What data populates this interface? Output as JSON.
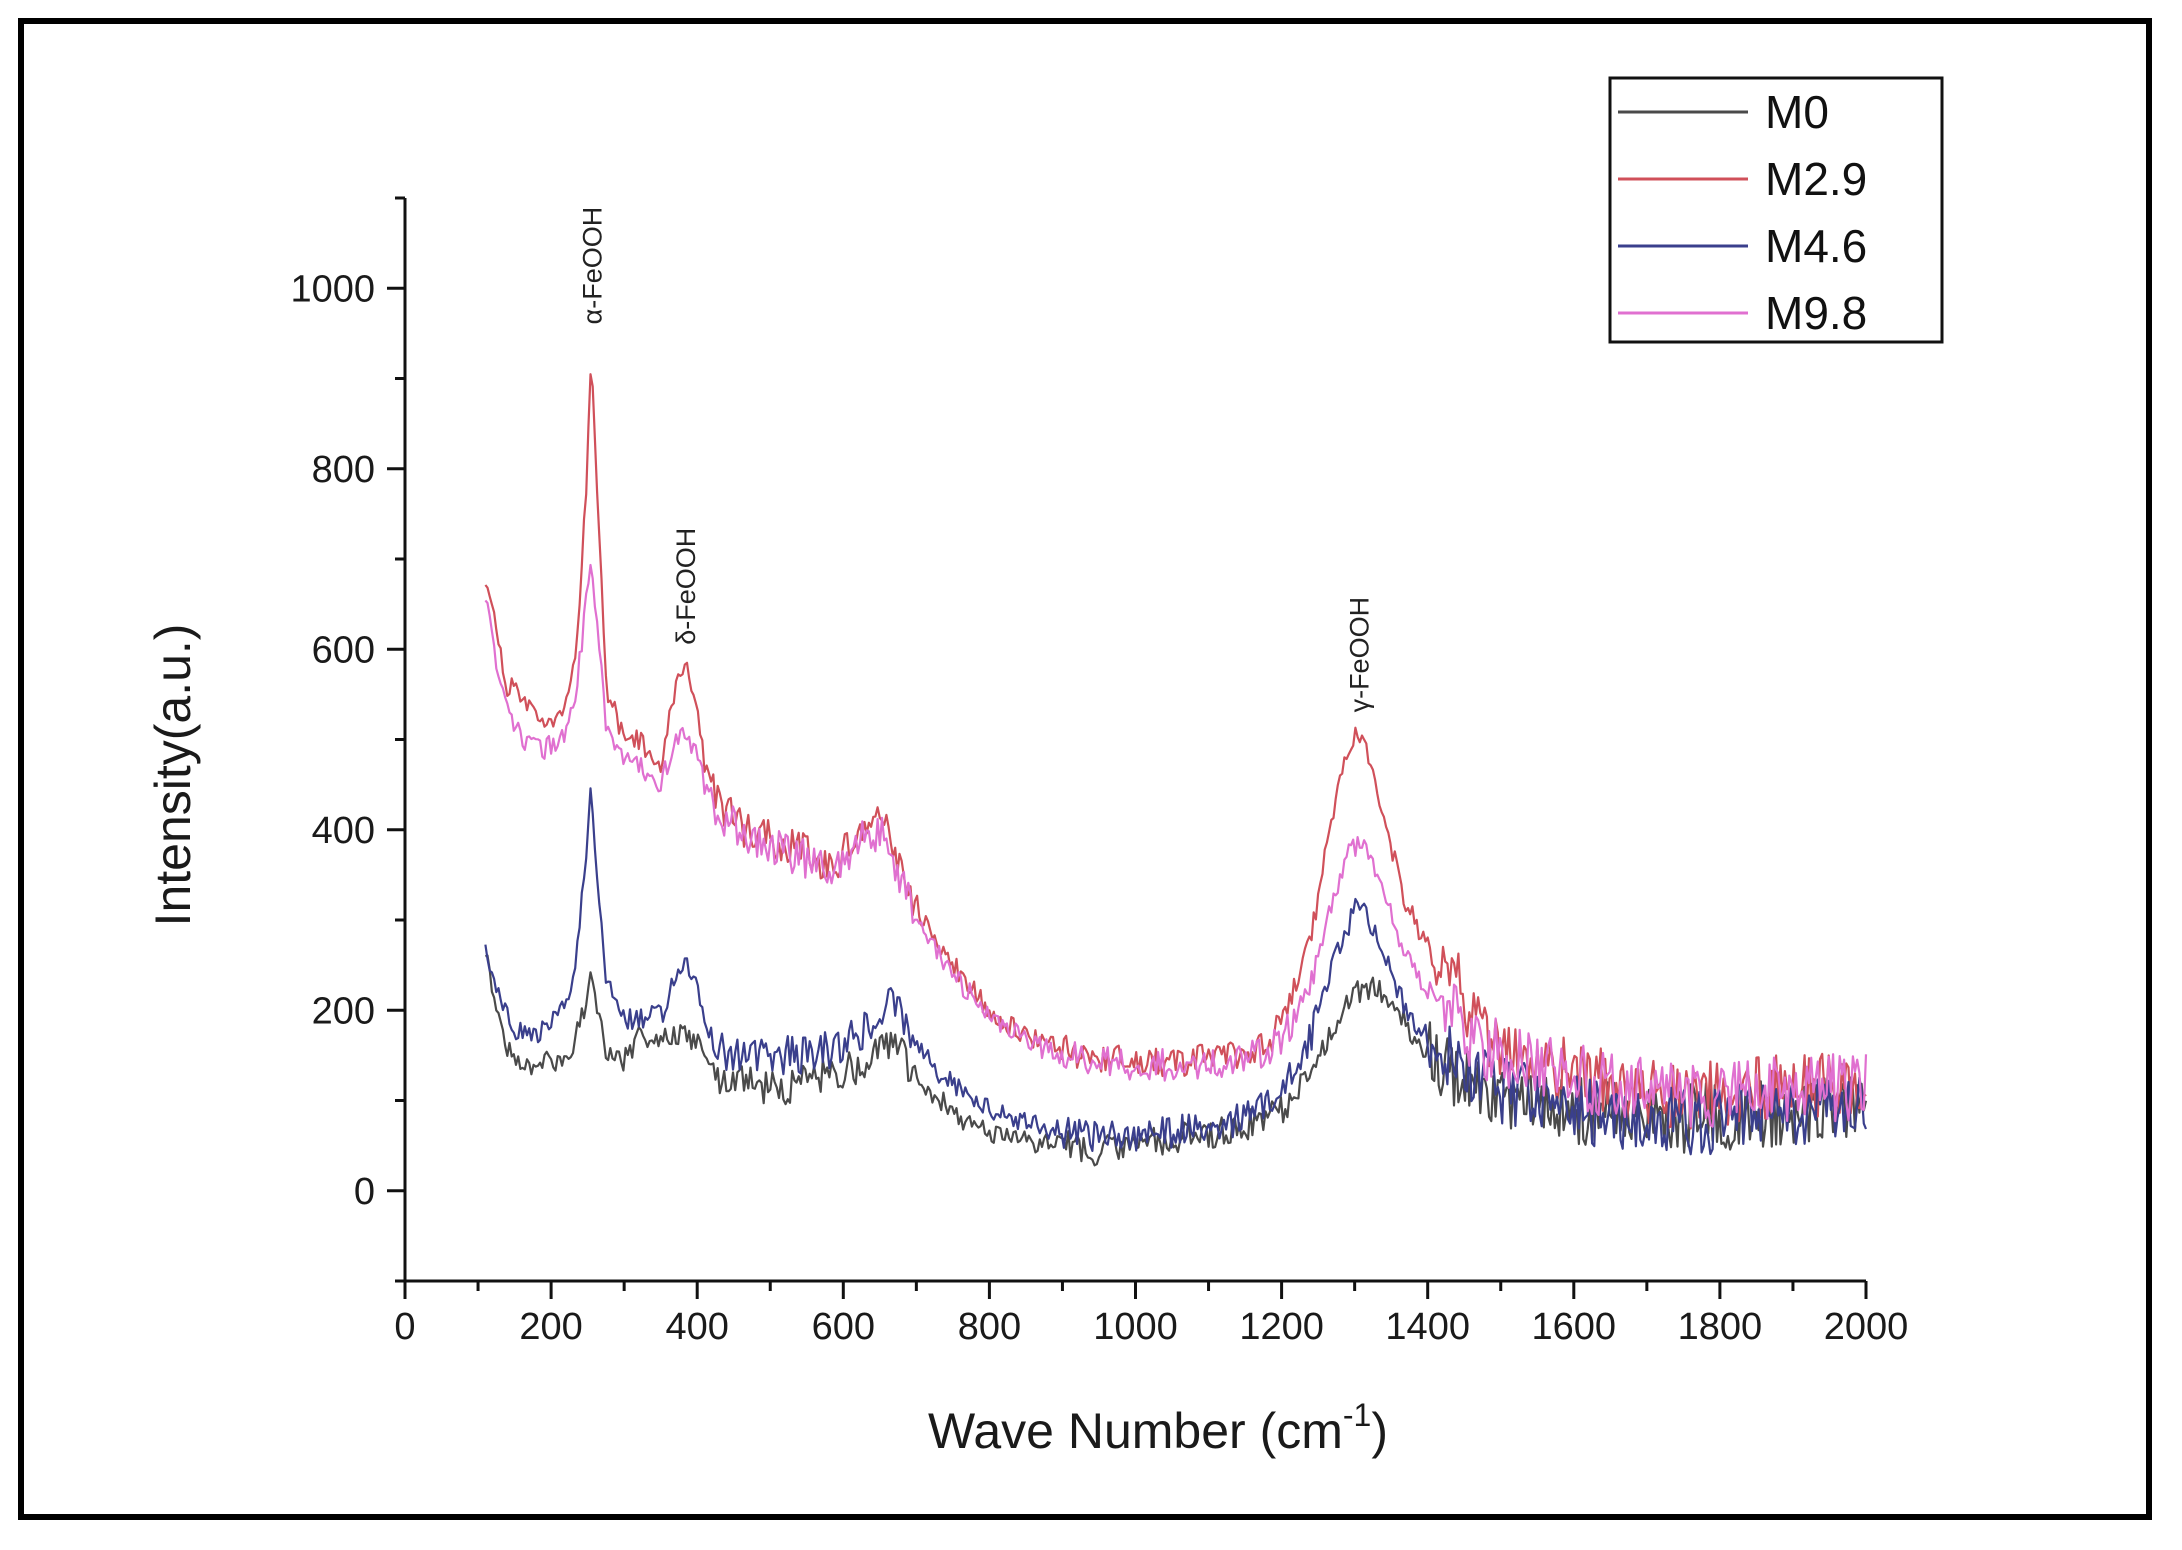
{
  "chart_data": {
    "type": "line",
    "xlabel_main": "Wave Number (cm",
    "xlabel_sup": "-1",
    "xlabel_end": ")",
    "ylabel": "Intensity(a.u.)",
    "xlim": [
      0,
      2000
    ],
    "ylim": [
      -100,
      1100
    ],
    "x_ticks": [
      0,
      200,
      400,
      600,
      800,
      1000,
      1200,
      1400,
      1600,
      1800,
      2000
    ],
    "y_ticks": [
      0,
      200,
      400,
      600,
      800,
      1000
    ],
    "annotations": [
      {
        "text": "α-FeOOH",
        "x": 255,
        "y": 960
      },
      {
        "text": "δ-FeOOH",
        "x": 383,
        "y": 605
      },
      {
        "text": "γ-FeOOH",
        "x": 1305,
        "y": 530
      }
    ],
    "legend_position": "top-right",
    "series": [
      {
        "name": "M0",
        "color": "#4a4a4a",
        "points": [
          [
            110,
            270
          ],
          [
            120,
            210
          ],
          [
            135,
            170
          ],
          [
            150,
            140
          ],
          [
            180,
            140
          ],
          [
            210,
            145
          ],
          [
            230,
            160
          ],
          [
            245,
            200
          ],
          [
            255,
            240
          ],
          [
            265,
            200
          ],
          [
            275,
            150
          ],
          [
            300,
            145
          ],
          [
            320,
            170
          ],
          [
            340,
            160
          ],
          [
            360,
            170
          ],
          [
            380,
            175
          ],
          [
            400,
            165
          ],
          [
            430,
            130
          ],
          [
            460,
            120
          ],
          [
            500,
            115
          ],
          [
            540,
            120
          ],
          [
            580,
            125
          ],
          [
            620,
            140
          ],
          [
            650,
            165
          ],
          [
            665,
            165
          ],
          [
            690,
            140
          ],
          [
            720,
            110
          ],
          [
            760,
            80
          ],
          [
            800,
            65
          ],
          [
            850,
            55
          ],
          [
            900,
            50
          ],
          [
            950,
            45
          ],
          [
            1000,
            50
          ],
          [
            1050,
            60
          ],
          [
            1100,
            65
          ],
          [
            1150,
            70
          ],
          [
            1200,
            90
          ],
          [
            1240,
            130
          ],
          [
            1270,
            180
          ],
          [
            1300,
            220
          ],
          [
            1330,
            225
          ],
          [
            1355,
            210
          ],
          [
            1380,
            170
          ],
          [
            1420,
            140
          ],
          [
            1460,
            110
          ],
          [
            1500,
            100
          ],
          [
            1550,
            95
          ],
          [
            1600,
            90
          ],
          [
            1650,
            85
          ],
          [
            1700,
            82
          ],
          [
            1750,
            80
          ],
          [
            1800,
            82
          ],
          [
            1850,
            85
          ],
          [
            1900,
            88
          ],
          [
            1950,
            92
          ],
          [
            2000,
            100
          ]
        ]
      },
      {
        "name": "M2.9",
        "color": "#d0505a",
        "points": [
          [
            110,
            680
          ],
          [
            125,
            620
          ],
          [
            140,
            560
          ],
          [
            160,
            550
          ],
          [
            190,
            520
          ],
          [
            215,
            530
          ],
          [
            235,
            600
          ],
          [
            248,
            780
          ],
          [
            255,
            930
          ],
          [
            262,
            800
          ],
          [
            275,
            560
          ],
          [
            295,
            510
          ],
          [
            320,
            500
          ],
          [
            350,
            470
          ],
          [
            370,
            560
          ],
          [
            383,
            580
          ],
          [
            395,
            560
          ],
          [
            410,
            470
          ],
          [
            430,
            430
          ],
          [
            460,
            400
          ],
          [
            500,
            390
          ],
          [
            540,
            380
          ],
          [
            580,
            360
          ],
          [
            610,
            380
          ],
          [
            635,
            420
          ],
          [
            660,
            410
          ],
          [
            680,
            350
          ],
          [
            710,
            300
          ],
          [
            750,
            250
          ],
          [
            800,
            200
          ],
          [
            850,
            170
          ],
          [
            900,
            155
          ],
          [
            950,
            150
          ],
          [
            1000,
            145
          ],
          [
            1050,
            145
          ],
          [
            1100,
            145
          ],
          [
            1150,
            150
          ],
          [
            1200,
            180
          ],
          [
            1240,
            280
          ],
          [
            1270,
            420
          ],
          [
            1290,
            490
          ],
          [
            1305,
            510
          ],
          [
            1320,
            480
          ],
          [
            1345,
            400
          ],
          [
            1370,
            320
          ],
          [
            1400,
            270
          ],
          [
            1430,
            250
          ],
          [
            1460,
            190
          ],
          [
            1500,
            160
          ],
          [
            1550,
            140
          ],
          [
            1600,
            130
          ],
          [
            1650,
            120
          ],
          [
            1700,
            110
          ],
          [
            1750,
            105
          ],
          [
            1800,
            110
          ],
          [
            1850,
            115
          ],
          [
            1900,
            115
          ],
          [
            1950,
            120
          ],
          [
            2000,
            120
          ]
        ]
      },
      {
        "name": "M4.6",
        "color": "#3a3f8c",
        "points": [
          [
            110,
            280
          ],
          [
            120,
            230
          ],
          [
            135,
            200
          ],
          [
            150,
            175
          ],
          [
            180,
            175
          ],
          [
            205,
            190
          ],
          [
            230,
            230
          ],
          [
            245,
            350
          ],
          [
            255,
            445
          ],
          [
            263,
            350
          ],
          [
            275,
            230
          ],
          [
            300,
            190
          ],
          [
            330,
            190
          ],
          [
            355,
            200
          ],
          [
            370,
            240
          ],
          [
            383,
            260
          ],
          [
            395,
            240
          ],
          [
            415,
            180
          ],
          [
            440,
            150
          ],
          [
            480,
            145
          ],
          [
            520,
            150
          ],
          [
            560,
            150
          ],
          [
            600,
            160
          ],
          [
            630,
            180
          ],
          [
            655,
            200
          ],
          [
            665,
            210
          ],
          [
            690,
            175
          ],
          [
            720,
            140
          ],
          [
            760,
            110
          ],
          [
            800,
            90
          ],
          [
            850,
            75
          ],
          [
            900,
            65
          ],
          [
            950,
            60
          ],
          [
            1000,
            60
          ],
          [
            1050,
            65
          ],
          [
            1100,
            70
          ],
          [
            1150,
            80
          ],
          [
            1200,
            110
          ],
          [
            1240,
            170
          ],
          [
            1270,
            250
          ],
          [
            1295,
            300
          ],
          [
            1305,
            320
          ],
          [
            1320,
            300
          ],
          [
            1345,
            250
          ],
          [
            1370,
            200
          ],
          [
            1400,
            170
          ],
          [
            1430,
            150
          ],
          [
            1460,
            130
          ],
          [
            1500,
            110
          ],
          [
            1550,
            100
          ],
          [
            1600,
            90
          ],
          [
            1650,
            85
          ],
          [
            1700,
            80
          ],
          [
            1750,
            75
          ],
          [
            1800,
            80
          ],
          [
            1850,
            82
          ],
          [
            1900,
            85
          ],
          [
            1950,
            90
          ],
          [
            2000,
            95
          ]
        ]
      },
      {
        "name": "M9.8",
        "color": "#e070d0",
        "points": [
          [
            110,
            660
          ],
          [
            125,
            580
          ],
          [
            140,
            530
          ],
          [
            160,
            500
          ],
          [
            190,
            490
          ],
          [
            215,
            500
          ],
          [
            235,
            560
          ],
          [
            248,
            650
          ],
          [
            255,
            700
          ],
          [
            262,
            640
          ],
          [
            275,
            520
          ],
          [
            295,
            480
          ],
          [
            320,
            470
          ],
          [
            350,
            450
          ],
          [
            370,
            500
          ],
          [
            383,
            510
          ],
          [
            395,
            490
          ],
          [
            410,
            450
          ],
          [
            430,
            420
          ],
          [
            460,
            400
          ],
          [
            500,
            380
          ],
          [
            540,
            370
          ],
          [
            580,
            360
          ],
          [
            610,
            370
          ],
          [
            635,
            400
          ],
          [
            660,
            390
          ],
          [
            680,
            340
          ],
          [
            710,
            290
          ],
          [
            750,
            240
          ],
          [
            800,
            195
          ],
          [
            850,
            165
          ],
          [
            900,
            150
          ],
          [
            950,
            145
          ],
          [
            1000,
            140
          ],
          [
            1050,
            140
          ],
          [
            1100,
            140
          ],
          [
            1150,
            145
          ],
          [
            1200,
            165
          ],
          [
            1240,
            230
          ],
          [
            1270,
            320
          ],
          [
            1290,
            370
          ],
          [
            1305,
            385
          ],
          [
            1320,
            370
          ],
          [
            1345,
            320
          ],
          [
            1370,
            260
          ],
          [
            1400,
            220
          ],
          [
            1430,
            200
          ],
          [
            1460,
            170
          ],
          [
            1500,
            150
          ],
          [
            1550,
            135
          ],
          [
            1600,
            125
          ],
          [
            1650,
            118
          ],
          [
            1700,
            110
          ],
          [
            1750,
            105
          ],
          [
            1800,
            108
          ],
          [
            1850,
            112
          ],
          [
            1900,
            110
          ],
          [
            1950,
            115
          ],
          [
            2000,
            115
          ]
        ]
      }
    ]
  }
}
